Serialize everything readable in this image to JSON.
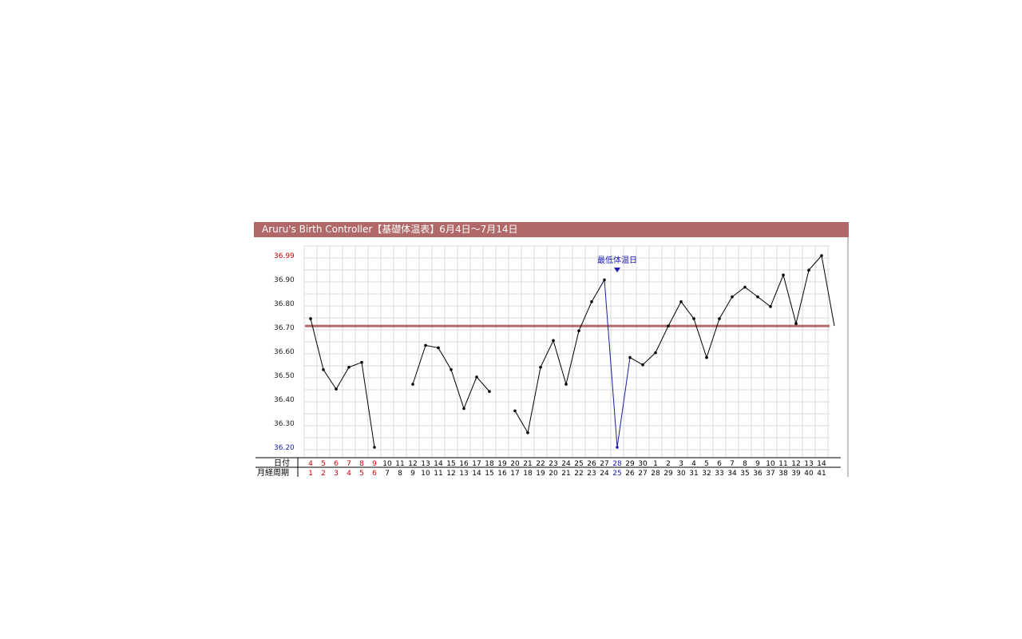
{
  "title": "Aruru's Birth Controller【基礎体温表】6月4日〜7月14日",
  "colors": {
    "title_bar": "#b06868",
    "reference_line": "#b06868",
    "line": "#000000",
    "ovulation_line": "#1a1aa0",
    "marker": "#1a1ab0",
    "max_label": "#cc0000",
    "min_label": "#1a1ab0",
    "highlight_date": "#cc0000",
    "cycle_date": "#1a1ab0",
    "grid": "#d8d8d8"
  },
  "chart_data": {
    "type": "line",
    "y_tick_labels": [
      "36.99",
      "36.90",
      "36.80",
      "36.70",
      "36.60",
      "36.50",
      "36.40",
      "36.30",
      "36.20"
    ],
    "ylim": [
      36.2,
      36.99
    ],
    "reference_value": 36.7,
    "row_labels": {
      "date": "日付",
      "cycle": "月経周期"
    },
    "dates": [
      "4",
      "5",
      "6",
      "7",
      "8",
      "9",
      "10",
      "11",
      "12",
      "13",
      "14",
      "15",
      "16",
      "17",
      "18",
      "19",
      "20",
      "21",
      "22",
      "23",
      "24",
      "25",
      "26",
      "27",
      "28",
      "29",
      "30",
      "1",
      "2",
      "3",
      "4",
      "5",
      "6",
      "7",
      "8",
      "9",
      "10",
      "11",
      "12",
      "13",
      "14"
    ],
    "cycle_days": [
      "1",
      "2",
      "3",
      "4",
      "5",
      "6",
      "7",
      "8",
      "9",
      "10",
      "11",
      "12",
      "13",
      "14",
      "15",
      "16",
      "17",
      "18",
      "19",
      "20",
      "21",
      "22",
      "23",
      "24",
      "25",
      "26",
      "27",
      "28",
      "29",
      "30",
      "31",
      "32",
      "33",
      "34",
      "35",
      "36",
      "37",
      "38",
      "39",
      "40",
      "41"
    ],
    "red_date_indices": [
      0,
      1,
      2,
      3,
      4,
      5
    ],
    "blue_date_indices": [
      24
    ],
    "series": [
      {
        "values": [
          36.73,
          36.52,
          36.44,
          36.53,
          36.55,
          36.2,
          null,
          null,
          36.46,
          36.62,
          36.61,
          36.52,
          36.36,
          36.49,
          36.43,
          null,
          36.35,
          36.26,
          36.53,
          36.64,
          36.46,
          36.68,
          36.8,
          36.89,
          36.2,
          36.57,
          36.54,
          36.59,
          36.7,
          36.8,
          36.73,
          36.57,
          36.73,
          36.82,
          36.86,
          36.82,
          36.78,
          36.91,
          36.71,
          36.93,
          36.99
        ]
      }
    ],
    "trailing_value": 36.7,
    "lowest_temperature_label": "最低体温日",
    "lowest_temperature_index": 24
  }
}
